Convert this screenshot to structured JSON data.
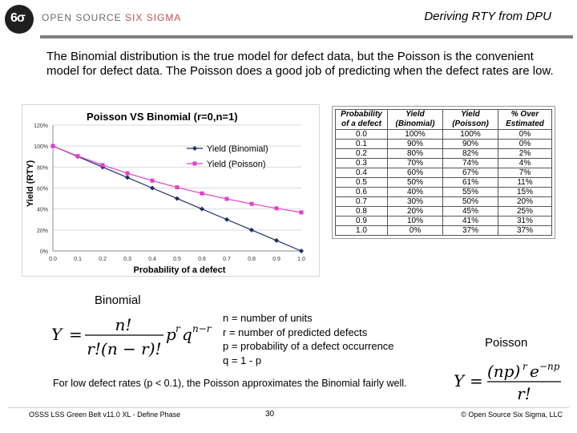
{
  "header": {
    "brand_prefix": "OPEN SOURCE ",
    "brand_accent": "SIX SIGMA",
    "logo_text": "6σ",
    "title": "Deriving RTY from DPU"
  },
  "intro": "The Binomial distribution is the true model for defect data, but the Poisson is the convenient model for defect data.  The Poisson does a good job of predicting when the defect rates are low.",
  "chart_data": {
    "type": "line",
    "title": "Poisson VS Binomial (r=0,n=1)",
    "xlabel": "Probability of a defect",
    "ylabel": "Yield (RTY)",
    "x": [
      0.0,
      0.1,
      0.2,
      0.3,
      0.4,
      0.5,
      0.6,
      0.7,
      0.8,
      0.9,
      1.0
    ],
    "x_ticks": [
      "0.0",
      "0.1",
      "0.2",
      "0.3",
      "0.4",
      "0.5",
      "0.6",
      "0.7",
      "0.8",
      "0.9",
      "1.0"
    ],
    "y_ticks": [
      "0%",
      "20%",
      "40%",
      "60%",
      "80%",
      "100%",
      "120%"
    ],
    "ylim": [
      0,
      1.2
    ],
    "xlim": [
      0,
      1
    ],
    "grid": true,
    "legend_position": "top-right",
    "series": [
      {
        "name": "Yield (Binomial)",
        "color": "#1f2a6b",
        "marker": "diamond",
        "values": [
          1.0,
          0.9,
          0.8,
          0.7,
          0.6,
          0.5,
          0.4,
          0.3,
          0.2,
          0.1,
          0.0
        ]
      },
      {
        "name": "Yield (Poisson)",
        "color": "#e040c8",
        "marker": "square",
        "values": [
          1.0,
          0.9048,
          0.8187,
          0.7408,
          0.6703,
          0.6065,
          0.5488,
          0.4966,
          0.4493,
          0.4066,
          0.3679
        ]
      }
    ]
  },
  "table": {
    "headers": [
      "Probability of a defect",
      "Yield (Binomial)",
      "Yield (Poisson)",
      "% Over Estimated"
    ],
    "rows": [
      [
        "0.0",
        "100%",
        "100%",
        "0%"
      ],
      [
        "0.1",
        "90%",
        "90%",
        "0%"
      ],
      [
        "0.2",
        "80%",
        "82%",
        "2%"
      ],
      [
        "0.3",
        "70%",
        "74%",
        "4%"
      ],
      [
        "0.4",
        "60%",
        "67%",
        "7%"
      ],
      [
        "0.5",
        "50%",
        "61%",
        "11%"
      ],
      [
        "0.6",
        "40%",
        "55%",
        "15%"
      ],
      [
        "0.7",
        "30%",
        "50%",
        "20%"
      ],
      [
        "0.8",
        "20%",
        "45%",
        "25%"
      ],
      [
        "0.9",
        "10%",
        "41%",
        "31%"
      ],
      [
        "1.0",
        "0%",
        "37%",
        "37%"
      ]
    ]
  },
  "binomial": {
    "label": "Binomial",
    "lhs": "Y",
    "eq": "=",
    "numerator": "n!",
    "denominator": "r!(n − r)!",
    "p": "p",
    "r_exp": "r",
    "q": "q",
    "nr_exp": "n−r"
  },
  "definitions": "n = number of units\nr = number of predicted defects\np = probability of a defect occurrence\nq = 1 - p",
  "poisson": {
    "label": "Poisson",
    "lhs": "Y",
    "eq": "=",
    "numerator": "(np)",
    "num_exp": "r",
    "e": "e",
    "e_exp": "−np",
    "denominator": "r!"
  },
  "note": "For low defect rates (p < 0.1), the Poisson approximates the Binomial fairly well.",
  "footer": {
    "left": "OSSS LSS Green Belt v11.0 XL - Define Phase",
    "page": "30",
    "right": "© Open Source Six Sigma, LLC"
  }
}
